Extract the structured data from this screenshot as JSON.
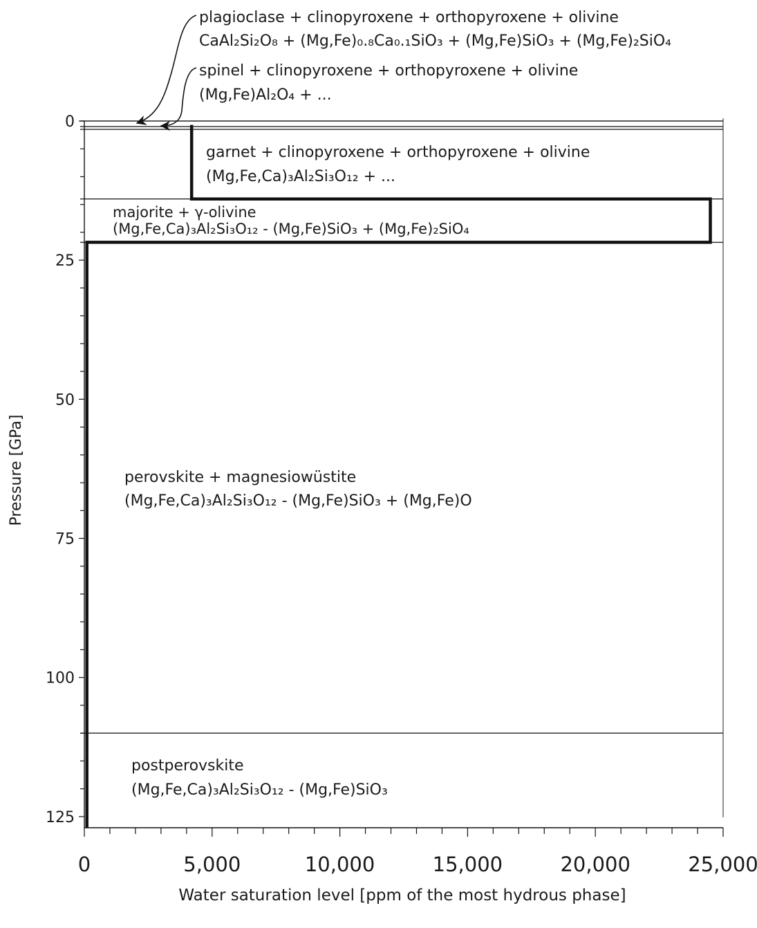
{
  "chart_data": {
    "type": "line",
    "xlabel": "Water saturation level [ppm of the most hydrous phase]",
    "ylabel": "Pressure [GPa]",
    "xlim": [
      0,
      25000
    ],
    "ylim": [
      127,
      0
    ],
    "x_ticks": [
      "0",
      "5,000",
      "10,000",
      "15,000",
      "20,000",
      "25,000"
    ],
    "y_ticks": [
      "0",
      "25",
      "50",
      "75",
      "100",
      "125"
    ],
    "phase_boundaries_gpa": [
      0,
      1,
      1.5,
      14,
      21.8,
      110
    ],
    "series": [
      {
        "x": [
          4200,
          4200,
          24500,
          24500,
          100,
          100
        ],
        "y": [
          0.7,
          14,
          14,
          21.8,
          21.8,
          127
        ]
      }
    ],
    "phases": [
      {
        "name": "plagioclase + clinopyroxene + orthopyroxene + olivine",
        "formula": "CaAl₂Si₂O₈ + (Mg,Fe)₀.₈Ca₀.₁SiO₃ + (Mg,Fe)SiO₃ + (Mg,Fe)₂SiO₄"
      },
      {
        "name": "spinel + clinopyroxene + orthopyroxene + olivine",
        "formula": "(Mg,Fe)Al₂O₄ + ..."
      },
      {
        "name": "garnet + clinopyroxene + orthopyroxene + olivine",
        "formula": "(Mg,Fe,Ca)₃Al₂Si₃O₁₂ + ..."
      },
      {
        "name": "majorite + γ-olivine",
        "formula": "(Mg,Fe,Ca)₃Al₂Si₃O₁₂ - (Mg,Fe)SiO₃ + (Mg,Fe)₂SiO₄"
      },
      {
        "name": "perovskite + magnesiowüstite",
        "formula": "(Mg,Fe,Ca)₃Al₂Si₃O₁₂ - (Mg,Fe)SiO₃ + (Mg,Fe)O"
      },
      {
        "name": "postperovskite",
        "formula": "(Mg,Fe,Ca)₃Al₂Si₃O₁₂ - (Mg,Fe)SiO₃"
      }
    ]
  }
}
